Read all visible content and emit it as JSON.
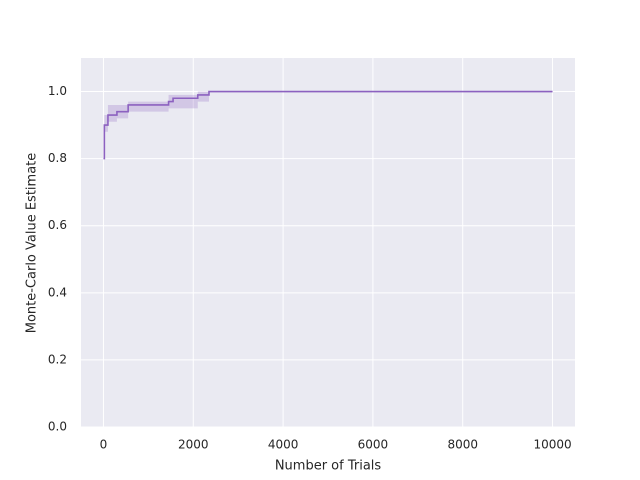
{
  "chart_data": {
    "type": "line",
    "xlabel": "Number of Trials",
    "ylabel": "Monte-Carlo Value Estimate",
    "x": [
      0,
      20,
      20,
      100,
      100,
      300,
      300,
      550,
      550,
      1450,
      1450,
      1550,
      1550,
      2100,
      2100,
      2350,
      2350,
      10000
    ],
    "series": [
      {
        "color": "#8c61c0",
        "values": [
          0.8,
          0.8,
          0.9,
          0.9,
          0.93,
          0.93,
          0.94,
          0.94,
          0.96,
          0.96,
          0.97,
          0.97,
          0.98,
          0.98,
          0.99,
          0.99,
          1.0,
          1.0
        ],
        "lower": [
          0.8,
          0.8,
          0.88,
          0.88,
          0.91,
          0.91,
          0.92,
          0.92,
          0.94,
          0.94,
          0.95,
          0.95,
          0.95,
          0.95,
          0.97,
          0.97,
          1.0,
          1.0
        ],
        "upper": [
          0.8,
          0.8,
          0.93,
          0.93,
          0.96,
          0.96,
          0.96,
          0.96,
          0.97,
          0.97,
          0.99,
          0.99,
          0.99,
          0.99,
          1.0,
          1.0,
          1.0,
          1.0
        ]
      }
    ],
    "xlim": [
      -500,
      10500
    ],
    "xticks": [
      0,
      2000,
      4000,
      6000,
      8000,
      10000
    ],
    "ylim": [
      0,
      1.1
    ],
    "yticks": [
      {
        "value": 0,
        "label": "0.0"
      },
      {
        "value": 0.2,
        "label": "0.2"
      },
      {
        "value": 0.4,
        "label": "0.4"
      },
      {
        "value": 0.6,
        "label": "0.6"
      },
      {
        "value": 0.8,
        "label": "0.8"
      },
      {
        "value": 1,
        "label": "1.0"
      }
    ],
    "grid": true,
    "background": "#eaeaf2"
  }
}
